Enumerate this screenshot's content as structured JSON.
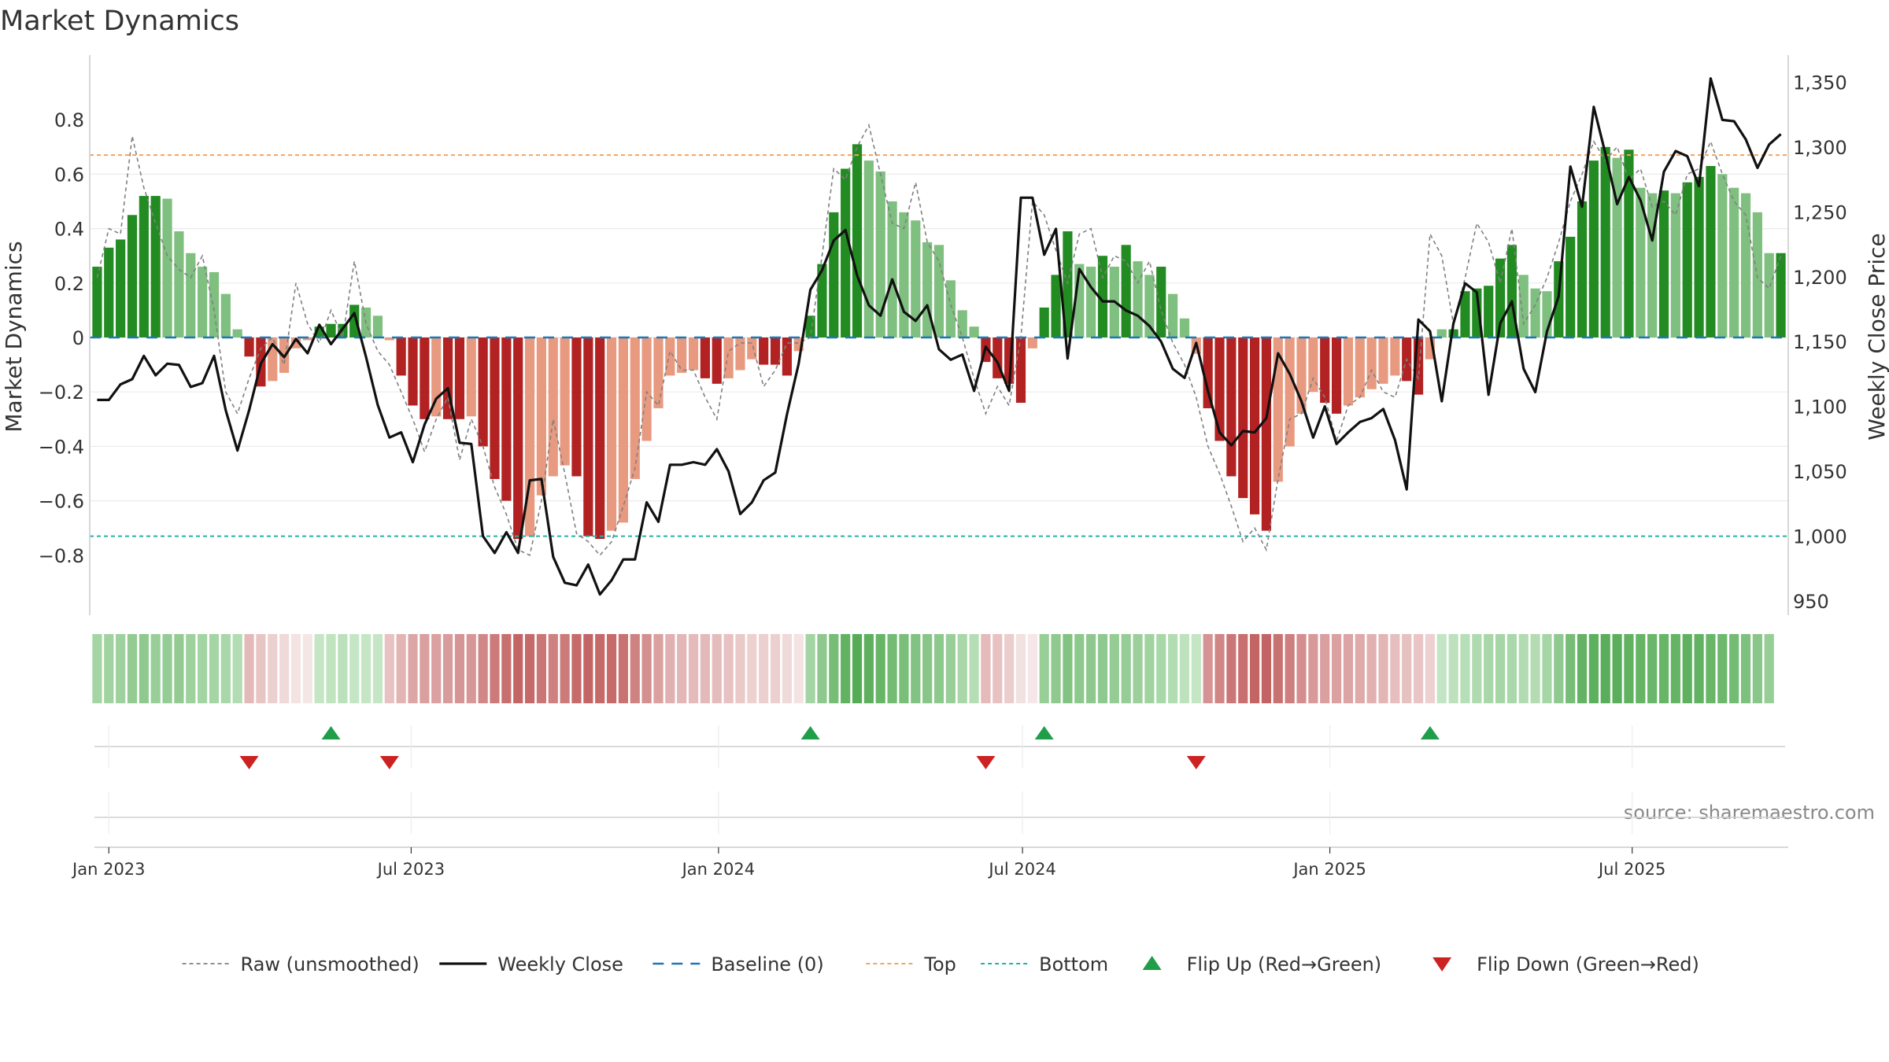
{
  "page": {
    "title": "Market Dynamics",
    "source": "source: sharemaestro.com"
  },
  "colors": {
    "green_strong": "#228b22",
    "green_light": "#7fbf7f",
    "red_strong": "#b22222",
    "red_light": "#e89a80",
    "price": "#111111",
    "raw": "#808080",
    "baseline": "#1f77b4",
    "top": "#f4a460",
    "bottom": "#20b2aa",
    "flip_up": "#1e9e48",
    "flip_down": "#cc2222"
  },
  "chart_data": {
    "type": "bar",
    "y_left_label": "Market Dynamics",
    "y_right_label": "Weekly Close Price",
    "ylim_left": [
      -0.8,
      0.8
    ],
    "ylim_right": [
      939,
      1371
    ],
    "y_left_ticks": [
      {
        "v": 0.8,
        "label": "0.8"
      },
      {
        "v": 0.6,
        "label": "0.6"
      },
      {
        "v": 0.4,
        "label": "0.4"
      },
      {
        "v": 0.2,
        "label": "0.2"
      },
      {
        "v": 0,
        "label": "0"
      },
      {
        "v": -0.2,
        "label": "−0.2"
      },
      {
        "v": -0.4,
        "label": "−0.4"
      },
      {
        "v": -0.6,
        "label": "−0.6"
      },
      {
        "v": -0.8,
        "label": "−0.8"
      }
    ],
    "y_right_ticks": [
      {
        "v": 1350,
        "label": "1,350"
      },
      {
        "v": 1300,
        "label": "1,300"
      },
      {
        "v": 1250,
        "label": "1,250"
      },
      {
        "v": 1200,
        "label": "1,200"
      },
      {
        "v": 1150,
        "label": "1,150"
      },
      {
        "v": 1100,
        "label": "1,100"
      },
      {
        "v": 1050,
        "label": "1,050"
      },
      {
        "v": 1000,
        "label": "1,000"
      },
      {
        "v": 950,
        "label": "950"
      }
    ],
    "x_ticks": [
      {
        "date": "2023-01-01",
        "label": "Jan 2023"
      },
      {
        "date": "2023-07-01",
        "label": "Jul 2023"
      },
      {
        "date": "2024-01-01",
        "label": "Jan 2024"
      },
      {
        "date": "2024-07-01",
        "label": "Jul 2024"
      },
      {
        "date": "2025-01-01",
        "label": "Jan 2025"
      },
      {
        "date": "2025-07-01",
        "label": "Jul 2025"
      }
    ],
    "top_level": 0.67,
    "bottom_level": -0.73,
    "baseline_level": 0,
    "weeks": {
      "start_date": "2022-12-25",
      "interval_days": 7,
      "values": [
        0.26,
        0.33,
        0.36,
        0.45,
        0.52,
        0.52,
        0.51,
        0.39,
        0.31,
        0.26,
        0.24,
        0.16,
        0.03,
        -0.07,
        -0.18,
        -0.16,
        -0.13,
        -0.04,
        -0.01,
        0.04,
        0.05,
        0.05,
        0.12,
        0.11,
        0.08,
        -0.01,
        -0.14,
        -0.25,
        -0.3,
        -0.29,
        -0.3,
        -0.3,
        -0.29,
        -0.4,
        -0.52,
        -0.6,
        -0.74,
        -0.73,
        -0.58,
        -0.51,
        -0.47,
        -0.51,
        -0.73,
        -0.74,
        -0.71,
        -0.68,
        -0.52,
        -0.38,
        -0.26,
        -0.14,
        -0.13,
        -0.12,
        -0.15,
        -0.17,
        -0.15,
        -0.12,
        -0.08,
        -0.1,
        -0.1,
        -0.14,
        -0.05,
        0.08,
        0.27,
        0.46,
        0.62,
        0.71,
        0.65,
        0.61,
        0.5,
        0.46,
        0.43,
        0.35,
        0.34,
        0.21,
        0.1,
        0.04,
        -0.09,
        -0.15,
        -0.17,
        -0.24,
        -0.04,
        0.11,
        0.23,
        0.39,
        0.27,
        0.26,
        0.3,
        0.26,
        0.34,
        0.28,
        0.23,
        0.26,
        0.16,
        0.07,
        -0.06,
        -0.26,
        -0.38,
        -0.51,
        -0.59,
        -0.65,
        -0.71,
        -0.53,
        -0.4,
        -0.28,
        -0.2,
        -0.24,
        -0.28,
        -0.25,
        -0.22,
        -0.19,
        -0.17,
        -0.14,
        -0.16,
        -0.21,
        -0.08,
        0.03,
        0.03,
        0.17,
        0.18,
        0.19,
        0.29,
        0.34,
        0.23,
        0.18,
        0.17,
        0.28,
        0.37,
        0.5,
        0.65,
        0.7,
        0.66,
        0.69,
        0.55,
        0.53,
        0.54,
        0.53,
        0.57,
        0.59,
        0.63,
        0.6,
        0.55,
        0.53,
        0.46,
        0.31,
        0.31
      ],
      "raw": [
        0.22,
        0.4,
        0.38,
        0.74,
        0.55,
        0.42,
        0.3,
        0.25,
        0.22,
        0.3,
        0.1,
        -0.2,
        -0.28,
        -0.15,
        -0.04,
        0.0,
        -0.1,
        0.2,
        0.05,
        -0.02,
        0.1,
        0.0,
        0.28,
        0.05,
        -0.05,
        -0.1,
        -0.2,
        -0.3,
        -0.42,
        -0.3,
        -0.22,
        -0.45,
        -0.3,
        -0.4,
        -0.55,
        -0.65,
        -0.78,
        -0.8,
        -0.6,
        -0.3,
        -0.5,
        -0.72,
        -0.75,
        -0.8,
        -0.75,
        -0.62,
        -0.48,
        -0.2,
        -0.25,
        -0.05,
        -0.12,
        -0.12,
        -0.22,
        -0.3,
        -0.05,
        -0.02,
        -0.02,
        -0.18,
        -0.12,
        -0.02,
        -0.02,
        0.0,
        0.3,
        0.62,
        0.58,
        0.7,
        0.78,
        0.6,
        0.42,
        0.4,
        0.57,
        0.35,
        0.28,
        0.12,
        0.0,
        -0.15,
        -0.28,
        -0.18,
        -0.25,
        0.0,
        0.5,
        0.45,
        0.32,
        0.2,
        0.38,
        0.4,
        0.22,
        0.3,
        0.28,
        0.2,
        0.28,
        0.1,
        -0.02,
        -0.1,
        -0.22,
        -0.4,
        -0.5,
        -0.62,
        -0.75,
        -0.7,
        -0.78,
        -0.52,
        -0.3,
        -0.28,
        -0.15,
        -0.22,
        -0.38,
        -0.25,
        -0.22,
        -0.12,
        -0.2,
        -0.22,
        -0.08,
        -0.15,
        0.38,
        0.3,
        0.05,
        0.22,
        0.42,
        0.35,
        0.2,
        0.4,
        0.05,
        0.12,
        0.22,
        0.35,
        0.5,
        0.6,
        0.72,
        0.65,
        0.7,
        0.58,
        0.62,
        0.48,
        0.5,
        0.45,
        0.6,
        0.62,
        0.72,
        0.6,
        0.5,
        0.45,
        0.22,
        0.18,
        0.3
      ],
      "close": [
        1105,
        1105,
        1117,
        1121,
        1139,
        1124,
        1133,
        1132,
        1115,
        1118,
        1139,
        1097,
        1066,
        1097,
        1133,
        1148,
        1138,
        1152,
        1141,
        1163,
        1148,
        1160,
        1172,
        1138,
        1101,
        1076,
        1080,
        1057,
        1086,
        1106,
        1114,
        1072,
        1071,
        1000,
        987,
        1003,
        987,
        1043,
        1044,
        984,
        964,
        962,
        978,
        955,
        966,
        982,
        982,
        1026,
        1011,
        1055,
        1055,
        1057,
        1055,
        1067,
        1050,
        1017,
        1026,
        1043,
        1049,
        1094,
        1133,
        1190,
        1205,
        1228,
        1236,
        1201,
        1178,
        1170,
        1198,
        1173,
        1166,
        1178,
        1144,
        1136,
        1140,
        1112,
        1146,
        1134,
        1112,
        1261,
        1261,
        1217,
        1237,
        1137,
        1206,
        1192,
        1181,
        1181,
        1174,
        1170,
        1162,
        1150,
        1129,
        1122,
        1149,
        1112,
        1080,
        1070,
        1081,
        1080,
        1091,
        1141,
        1125,
        1104,
        1076,
        1100,
        1071,
        1080,
        1088,
        1091,
        1098,
        1074,
        1036,
        1167,
        1158,
        1104,
        1164,
        1195,
        1188,
        1109,
        1164,
        1181,
        1129,
        1111,
        1158,
        1185,
        1285,
        1254,
        1331,
        1295,
        1256,
        1277,
        1259,
        1228,
        1281,
        1297,
        1293,
        1270,
        1353,
        1321,
        1320,
        1306,
        1284,
        1302,
        1310
      ]
    },
    "regime_colors": [
      "#a5d5a5",
      "#a1d3a1",
      "#9ed19e",
      "#93cb93",
      "#90c990",
      "#99ce99",
      "#95cc95",
      "#93cb93",
      "#9ed19e",
      "#a4d4a4",
      "#a5d5a5",
      "#a9d7a9",
      "#b2dcb2",
      "#e4b9b9",
      "#e8c5c5",
      "#eccfcf",
      "#efd9d9",
      "#f3e3e3",
      "#f5e6e6",
      "#c5e6c5",
      "#c0e3c0",
      "#bbe1bb",
      "#c5e6c5",
      "#c5e6c5",
      "#c5e6c5",
      "#e8c2c2",
      "#e2b4b4",
      "#dda6a6",
      "#da9f9f",
      "#dba0a0",
      "#d99c9c",
      "#d69595",
      "#d79797",
      "#d18787",
      "#cc7a7a",
      "#c87070",
      "#c46565",
      "#c66969",
      "#cb7676",
      "#cf8181",
      "#cc7b7b",
      "#c66a6a",
      "#c46565",
      "#c66969",
      "#c66a6a",
      "#c97272",
      "#cf8282",
      "#d48f8f",
      "#dba0a0",
      "#e1b1b1",
      "#e3b7b7",
      "#e4baba",
      "#e4b9b9",
      "#e5bcbc",
      "#e8c2c2",
      "#eac9c9",
      "#edd1d1",
      "#eccfcf",
      "#ecd0d0",
      "#f0d9d9",
      "#f3e3e3",
      "#a3d4a3",
      "#8ec88e",
      "#77bc77",
      "#62b262",
      "#56ac56",
      "#5eb05e",
      "#68b568",
      "#74bb74",
      "#79be79",
      "#82c282",
      "#88c588",
      "#8dc88d",
      "#99ce99",
      "#a9d7a9",
      "#b6deb6",
      "#e4baba",
      "#e8c2c2",
      "#ebcdcd",
      "#f2e1e1",
      "#f5e7e7",
      "#99ce99",
      "#8fc98f",
      "#82c282",
      "#8dc88d",
      "#8ec88e",
      "#8fc98f",
      "#95cc95",
      "#96cc96",
      "#9ccf9c",
      "#a1d3a1",
      "#a8d7a8",
      "#b2dcb2",
      "#bde2bd",
      "#c5e6c5",
      "#d59393",
      "#d18686",
      "#cb7777",
      "#c87070",
      "#c46565",
      "#c36363",
      "#c97272",
      "#ce7e7e",
      "#d48e8e",
      "#d89999",
      "#da9f9f",
      "#dba0a0",
      "#dca4a4",
      "#deaaaa",
      "#e1b1b1",
      "#e3b5b5",
      "#e6bebe",
      "#e7c0c0",
      "#e9c5c5",
      "#edd1d1",
      "#c3e5c3",
      "#bce1bc",
      "#b7dfb7",
      "#b0dbb0",
      "#a9d7a9",
      "#a6d5a6",
      "#aad8aa",
      "#b1dbb1",
      "#b3dcb3",
      "#a6d5a6",
      "#8fc98f",
      "#77bc77",
      "#64b264",
      "#5db05d",
      "#5aad5a",
      "#5bae5b",
      "#60b160",
      "#66b466",
      "#6ab66a",
      "#67b567",
      "#65b465",
      "#5fb05f",
      "#63b263",
      "#69b669",
      "#6db86d",
      "#74bb74",
      "#7ec07e",
      "#8ac68a",
      "#97cd97"
    ],
    "flip_up_weeks": [
      20,
      61,
      81,
      114
    ],
    "flip_down_weeks": [
      13,
      25,
      76,
      94
    ],
    "legend": [
      {
        "key": "raw",
        "label": "Raw (unsmoothed)"
      },
      {
        "key": "close",
        "label": "Weekly Close"
      },
      {
        "key": "baseline",
        "label": "Baseline (0)"
      },
      {
        "key": "top",
        "label": "Top"
      },
      {
        "key": "bottom",
        "label": "Bottom"
      },
      {
        "key": "flip_up",
        "label": "Flip Up (Red→Green)"
      },
      {
        "key": "flip_down",
        "label": "Flip Down (Green→Red)"
      }
    ]
  }
}
